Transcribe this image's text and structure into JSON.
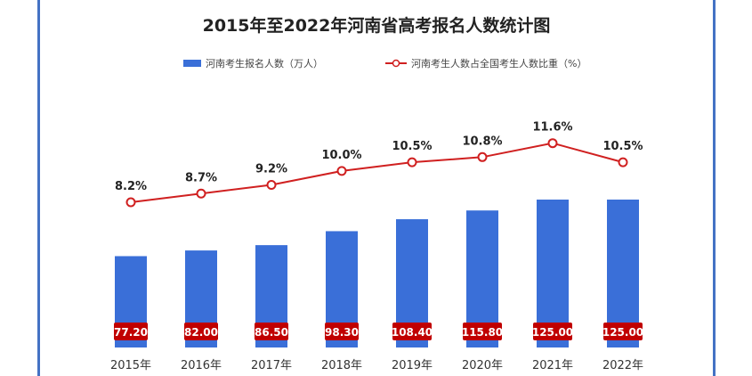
{
  "chart_data": {
    "type": "bar+line",
    "title": "2015年至2022年河南省高考报名人数统计图",
    "categories": [
      "2015年",
      "2016年",
      "2017年",
      "2018年",
      "2019年",
      "2020年",
      "2021年",
      "2022年"
    ],
    "series": [
      {
        "name": "河南考生报名人数（万人）",
        "kind": "bar",
        "values": [
          77.2,
          82.0,
          86.5,
          98.3,
          108.4,
          115.8,
          125.0,
          125.0
        ],
        "labels": [
          "77.20",
          "82.00",
          "86.50",
          "98.30",
          "108.40",
          "115.80",
          "125.00",
          "125.00"
        ],
        "color": "#3a6fd8"
      },
      {
        "name": "河南考生人数占全国考生人数比重（%）",
        "kind": "line",
        "values": [
          8.2,
          8.7,
          9.2,
          10.0,
          10.5,
          10.8,
          11.6,
          10.5
        ],
        "labels": [
          "8.2%",
          "8.7%",
          "9.2%",
          "10.0%",
          "10.5%",
          "10.8%",
          "11.6%",
          "10.5%"
        ],
        "color": "#d02020"
      }
    ],
    "label_box_color": "#c00000",
    "grid": false,
    "legend_position": "top-center"
  }
}
